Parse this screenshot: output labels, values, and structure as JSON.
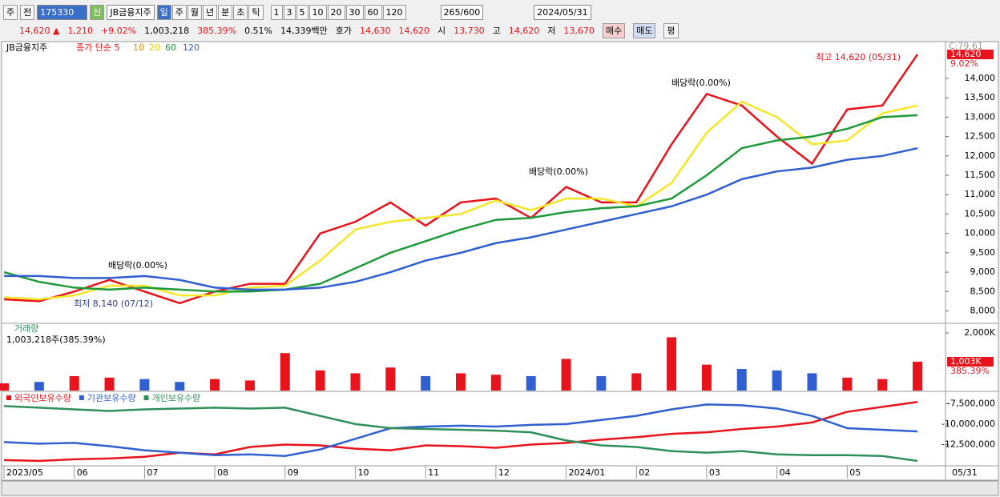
{
  "toolbar": {
    "period_btn": "주",
    "prev_btn": "전",
    "code": "175330",
    "new_badge": "신",
    "name": "JB금융지주",
    "tabs": [
      "일",
      "주",
      "월",
      "년",
      "분",
      "초",
      "틱"
    ],
    "intervals": [
      "1",
      "3",
      "5",
      "10",
      "20",
      "30",
      "60",
      "120"
    ],
    "count": "265/600",
    "date": "2024/05/31"
  },
  "info": {
    "price": "14,620 ▲",
    "change": "1,210",
    "rate": "+9.02%",
    "volume": "1,003,218",
    "vol_rate": "385.39%",
    "turnover": "0.51%",
    "amount": "14,339백만",
    "ask_label": "호가",
    "ask": "14,630",
    "bid": "14,620",
    "open_label": "시",
    "open": "13,730",
    "high_label": "고",
    "high": "14,620",
    "low_label": "저",
    "low": "13,670",
    "buy": "매수",
    "sell": "매도",
    "avg": "평"
  },
  "chart_data": [
    {
      "type": "line",
      "legend": {
        "name": "JB금융지주",
        "ma_label": "종가 단순 5",
        "ma_periods": [
          "10",
          "20",
          "60",
          "120"
        ]
      },
      "annotations": {
        "dividend": "배당락(0.00%)",
        "high": "최고 14,620 (05/31)",
        "low": "최저 8,140 (07/12)",
        "c_value": "C:79.61",
        "price_tag": "14,620",
        "rate_tag": "9.02%"
      },
      "categories": [
        "2023/05",
        null,
        "06",
        null,
        "07",
        null,
        "08",
        null,
        "09",
        null,
        "10",
        null,
        "11",
        null,
        "12",
        null,
        "2024/01",
        null,
        "02",
        null,
        "03",
        null,
        "04",
        null,
        "05",
        null,
        null
      ],
      "end_label": "05/31",
      "ylim": [
        7700,
        14950
      ],
      "yticks": [
        {
          "value": 8000,
          "label": "8,000"
        },
        {
          "value": 8500,
          "label": "8,500"
        },
        {
          "value": 9000,
          "label": "9,000"
        },
        {
          "value": 9500,
          "label": "9,500"
        },
        {
          "value": 10000,
          "label": "10,000"
        },
        {
          "value": 10500,
          "label": "10,500"
        },
        {
          "value": 11000,
          "label": "11,000"
        },
        {
          "value": 11500,
          "label": "11,500"
        },
        {
          "value": 12000,
          "label": "12,000"
        },
        {
          "value": 12500,
          "label": "12,500"
        },
        {
          "value": 13000,
          "label": "13,000"
        },
        {
          "value": 13500,
          "label": "13,500"
        },
        {
          "value": 14000,
          "label": "14,000"
        }
      ],
      "series": [
        {
          "name": "종가",
          "color": "#e8131b",
          "values": [
            8300,
            8250,
            8500,
            8800,
            8500,
            8200,
            8500,
            8700,
            8700,
            10000,
            10300,
            10800,
            10200,
            10800,
            10900,
            10400,
            11200,
            10800,
            10800,
            12300,
            13600,
            13300,
            12500,
            11800,
            13200,
            13300,
            14620
          ]
        },
        {
          "name": "20",
          "color": "#f5e626",
          "values": [
            8350,
            8300,
            8400,
            8650,
            8650,
            8400,
            8400,
            8600,
            8650,
            9300,
            10100,
            10300,
            10400,
            10500,
            10850,
            10600,
            10900,
            10900,
            10700,
            11300,
            12600,
            13400,
            13000,
            12300,
            12400,
            13100,
            13300
          ]
        },
        {
          "name": "60",
          "color": "#1f9a3a",
          "values": [
            9000,
            8750,
            8600,
            8550,
            8600,
            8550,
            8500,
            8500,
            8550,
            8700,
            9100,
            9500,
            9800,
            10100,
            10350,
            10400,
            10550,
            10650,
            10700,
            10900,
            11500,
            12200,
            12400,
            12500,
            12700,
            13000,
            13050
          ]
        },
        {
          "name": "120",
          "color": "#2f5fd0",
          "values": [
            8900,
            8900,
            8850,
            8850,
            8900,
            8800,
            8600,
            8550,
            8550,
            8600,
            8750,
            9000,
            9300,
            9500,
            9750,
            9900,
            10100,
            10300,
            10500,
            10700,
            11000,
            11400,
            11600,
            11700,
            11900,
            12000,
            12200
          ]
        }
      ]
    },
    {
      "type": "bar",
      "title": "거래량",
      "subtitle": "1,003,218주(385.39%)",
      "last_tag": "1,003K",
      "rate_tag": "385.39%",
      "ylim": [
        0,
        2306000
      ],
      "yticks": [
        {
          "value": 2000000,
          "label": "2,000K"
        }
      ],
      "values": [
        250000,
        300000,
        500000,
        450000,
        400000,
        300000,
        400000,
        350000,
        1300000,
        700000,
        600000,
        800000,
        500000,
        600000,
        550000,
        500000,
        1100000,
        500000,
        600000,
        1850000,
        900000,
        750000,
        700000,
        600000,
        450000,
        400000,
        1003218
      ],
      "colors": [
        "#e8131b",
        "#2f5fd0"
      ]
    },
    {
      "type": "line",
      "ylim": [
        -14900000,
        -6100000
      ],
      "yticks": [
        {
          "value": -7500000,
          "label": "-7,500,000"
        },
        {
          "value": -10000000,
          "label": "-10,000,000"
        },
        {
          "value": -12500000,
          "label": "-12,500,000"
        }
      ],
      "series": [
        {
          "name": "외국인보유수량",
          "color": "#e8131b",
          "values": [
            -14400000,
            -14500000,
            -14300000,
            -14200000,
            -14000000,
            -13500000,
            -13700000,
            -12800000,
            -12500000,
            -12600000,
            -13000000,
            -13200000,
            -12600000,
            -12700000,
            -12900000,
            -12500000,
            -12300000,
            -11900000,
            -11600000,
            -11200000,
            -11000000,
            -10600000,
            -10300000,
            -9800000,
            -8500000,
            -7900000,
            -7300000
          ]
        },
        {
          "name": "기관보유수량",
          "color": "#2f5fd0",
          "values": [
            -12200000,
            -12400000,
            -12300000,
            -12700000,
            -13200000,
            -13500000,
            -13800000,
            -13700000,
            -13900000,
            -13100000,
            -11800000,
            -10500000,
            -10300000,
            -10200000,
            -10300000,
            -10100000,
            -10000000,
            -9500000,
            -9000000,
            -8200000,
            -7600000,
            -7700000,
            -8100000,
            -9000000,
            -10500000,
            -10700000,
            -10900000
          ]
        },
        {
          "name": "개인보유수량",
          "color": "#2f8f5a",
          "values": [
            -7800000,
            -8000000,
            -8200000,
            -8400000,
            -8200000,
            -8100000,
            -8000000,
            -8100000,
            -8000000,
            -9000000,
            -10000000,
            -10500000,
            -10600000,
            -10700000,
            -10800000,
            -11000000,
            -12000000,
            -12600000,
            -12800000,
            -13300000,
            -13500000,
            -13300000,
            -13700000,
            -13800000,
            -13800000,
            -13900000,
            -14500000
          ]
        }
      ]
    }
  ]
}
